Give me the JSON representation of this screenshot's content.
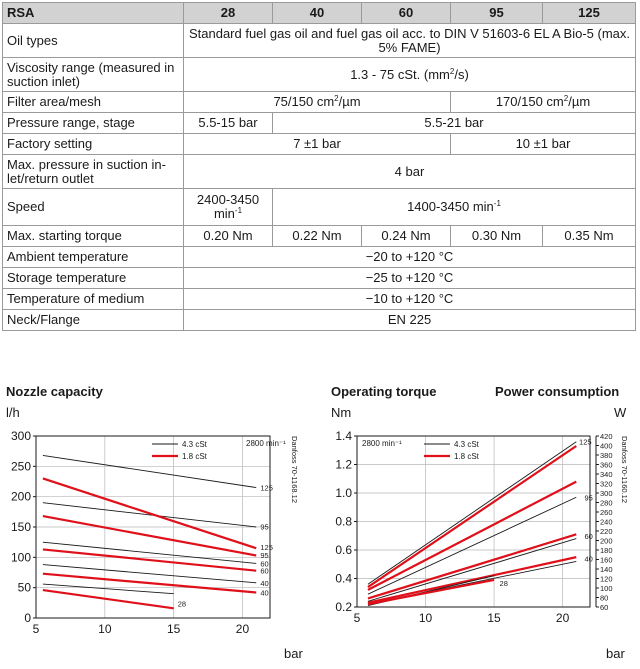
{
  "table": {
    "header": [
      "RSA",
      "28",
      "40",
      "60",
      "95",
      "125"
    ],
    "rows": [
      {
        "label": "Oil types",
        "cells": [
          {
            "text": "Standard fuel gas oil and fuel gas oil acc. to DIN V 51603-6 EL A Bio-5 (max. 5% FAME)",
            "span": 5
          }
        ]
      },
      {
        "label": "Viscosity range (measured in suction inlet)",
        "cells": [
          {
            "text": "1.3 - 75 cSt. (mm²/s)",
            "span": 5
          }
        ]
      },
      {
        "label": "Filter area/mesh",
        "cells": [
          {
            "text": "75/150 cm²/µm",
            "span": 3
          },
          {
            "text": "170/150 cm²/µm",
            "span": 2
          }
        ]
      },
      {
        "label": "Pressure range, stage",
        "cells": [
          {
            "text": "5.5-15 bar",
            "span": 1
          },
          {
            "text": "5.5-21 bar",
            "span": 4
          }
        ]
      },
      {
        "label": "Factory setting",
        "cells": [
          {
            "text": "7 ±1 bar",
            "span": 3
          },
          {
            "text": "10 ±1 bar",
            "span": 2
          }
        ]
      },
      {
        "label": "Max. pressure in suction in-let/return outlet",
        "cells": [
          {
            "text": "4 bar",
            "span": 5
          }
        ]
      },
      {
        "label": "Speed",
        "cells": [
          {
            "text": "2400-3450 min⁻¹",
            "span": 1
          },
          {
            "text": "1400-3450 min⁻¹",
            "span": 4
          }
        ]
      },
      {
        "label": "Max. starting torque",
        "cells": [
          {
            "text": "0.20 Nm",
            "span": 1
          },
          {
            "text": "0.22 Nm",
            "span": 1
          },
          {
            "text": "0.24 Nm",
            "span": 1
          },
          {
            "text": "0.30 Nm",
            "span": 1
          },
          {
            "text": "0.35 Nm",
            "span": 1
          }
        ]
      },
      {
        "label": "Ambient temperature",
        "cells": [
          {
            "text": "−20 to +120 °C",
            "span": 5
          }
        ]
      },
      {
        "label": "Storage temperature",
        "cells": [
          {
            "text": "−25 to +120 °C",
            "span": 5
          }
        ]
      },
      {
        "label": "Temperature of medium",
        "cells": [
          {
            "text": "−10 to +120 °C",
            "span": 5
          }
        ]
      },
      {
        "label": "Neck/Flange",
        "cells": [
          {
            "text": "EN 225",
            "span": 5
          }
        ]
      }
    ]
  },
  "chart_data": [
    {
      "type": "line",
      "title": "Nozzle capacity",
      "ylabel": "l/h",
      "xlabel": "bar",
      "xlim": [
        5,
        22
      ],
      "ylim": [
        0,
        300
      ],
      "xticks": [
        5,
        10,
        15,
        20
      ],
      "yticks": [
        0,
        50,
        100,
        150,
        200,
        250,
        300
      ],
      "legend": [
        "4.3 cSt",
        "1.8 cSt"
      ],
      "speed_label": "2800 min⁻¹",
      "side_note": "Danfoss 70-1168.12",
      "colors": {
        "4.3 cSt": "#1a1a1a",
        "1.8 cSt": "#e0101a"
      },
      "series": [
        {
          "name": "125",
          "viscosity": "4.3 cSt",
          "x": [
            5.5,
            21
          ],
          "y": [
            268,
            215
          ]
        },
        {
          "name": "95",
          "viscosity": "4.3 cSt",
          "x": [
            5.5,
            21
          ],
          "y": [
            190,
            150
          ]
        },
        {
          "name": "60",
          "viscosity": "4.3 cSt",
          "x": [
            5.5,
            21
          ],
          "y": [
            125,
            90
          ]
        },
        {
          "name": "40",
          "viscosity": "4.3 cSt",
          "x": [
            5.5,
            21
          ],
          "y": [
            88,
            58
          ]
        },
        {
          "name": "28",
          "viscosity": "4.3 cSt",
          "x": [
            5.5,
            15
          ],
          "y": [
            56,
            40
          ]
        },
        {
          "name": "125",
          "viscosity": "1.8 cSt",
          "x": [
            5.5,
            21
          ],
          "y": [
            230,
            115
          ]
        },
        {
          "name": "95",
          "viscosity": "1.8 cSt",
          "x": [
            5.5,
            21
          ],
          "y": [
            168,
            103
          ]
        },
        {
          "name": "60",
          "viscosity": "1.8 cSt",
          "x": [
            5.5,
            21
          ],
          "y": [
            113,
            78
          ]
        },
        {
          "name": "40",
          "viscosity": "1.8 cSt",
          "x": [
            5.5,
            21
          ],
          "y": [
            73,
            42
          ]
        },
        {
          "name": "28",
          "viscosity": "1.8 cSt",
          "x": [
            5.5,
            15
          ],
          "y": [
            46,
            16
          ]
        }
      ],
      "series_labels": [
        {
          "text": "125",
          "x": 21.3,
          "y": 215
        },
        {
          "text": "95",
          "x": 21.3,
          "y": 151
        },
        {
          "text": "125",
          "x": 21.3,
          "y": 117
        },
        {
          "text": "95",
          "x": 21.3,
          "y": 104
        },
        {
          "text": "60",
          "x": 21.3,
          "y": 90
        },
        {
          "text": "60",
          "x": 21.3,
          "y": 78
        },
        {
          "text": "40",
          "x": 21.3,
          "y": 58
        },
        {
          "text": "40",
          "x": 21.3,
          "y": 42
        },
        {
          "text": "28",
          "x": 15.3,
          "y": 24
        }
      ]
    },
    {
      "type": "line",
      "title": "Operating torque",
      "title2": "Power consumption",
      "ylabel": "Nm",
      "y2label": "W",
      "xlabel": "bar",
      "xlim": [
        5,
        22
      ],
      "ylim": [
        0.2,
        1.4
      ],
      "y2lim": [
        60,
        420
      ],
      "xticks": [
        5,
        10,
        15,
        20
      ],
      "yticks": [
        0.2,
        0.4,
        0.6,
        0.8,
        1.0,
        1.2,
        1.4
      ],
      "y2ticks": [
        60,
        80,
        100,
        120,
        140,
        160,
        180,
        200,
        220,
        240,
        260,
        280,
        300,
        320,
        340,
        360,
        380,
        400,
        420
      ],
      "legend": [
        "4.3 cSt",
        "1.8 cSt"
      ],
      "speed_label": "2800 min⁻¹",
      "side_note": "Danfoss 70-1160.12",
      "colors": {
        "4.3 cSt": "#1a1a1a",
        "1.8 cSt": "#e0101a"
      },
      "series": [
        {
          "name": "125",
          "viscosity": "4.3 cSt",
          "x": [
            5.8,
            21
          ],
          "y": [
            0.36,
            1.36
          ]
        },
        {
          "name": "125",
          "viscosity": "1.8 cSt",
          "x": [
            5.8,
            21
          ],
          "y": [
            0.34,
            1.33
          ]
        },
        {
          "name": "95",
          "viscosity": "4.3 cSt",
          "x": [
            5.8,
            21
          ],
          "y": [
            0.29,
            0.97
          ]
        },
        {
          "name": "95",
          "viscosity": "1.8 cSt",
          "x": [
            5.8,
            21
          ],
          "y": [
            0.32,
            1.08
          ]
        },
        {
          "name": "60",
          "viscosity": "4.3 cSt",
          "x": [
            5.8,
            21
          ],
          "y": [
            0.24,
            0.68
          ]
        },
        {
          "name": "60",
          "viscosity": "1.8 cSt",
          "x": [
            5.8,
            21
          ],
          "y": [
            0.26,
            0.71
          ]
        },
        {
          "name": "40",
          "viscosity": "4.3 cSt",
          "x": [
            5.8,
            21
          ],
          "y": [
            0.22,
            0.52
          ]
        },
        {
          "name": "40",
          "viscosity": "1.8 cSt",
          "x": [
            5.8,
            21
          ],
          "y": [
            0.23,
            0.55
          ]
        },
        {
          "name": "28",
          "viscosity": "4.3 cSt",
          "x": [
            5.8,
            15
          ],
          "y": [
            0.21,
            0.42
          ]
        },
        {
          "name": "28",
          "viscosity": "1.8 cSt",
          "x": [
            5.8,
            15
          ],
          "y": [
            0.22,
            0.39
          ]
        }
      ],
      "series_labels": [
        {
          "text": "125",
          "x": 21.2,
          "y": 1.36
        },
        {
          "text": "95",
          "x": 21.6,
          "y": 0.97
        },
        {
          "text": "60",
          "x": 21.6,
          "y": 0.7
        },
        {
          "text": "40",
          "x": 21.6,
          "y": 0.54
        },
        {
          "text": "28",
          "x": 15.4,
          "y": 0.37
        }
      ]
    }
  ]
}
